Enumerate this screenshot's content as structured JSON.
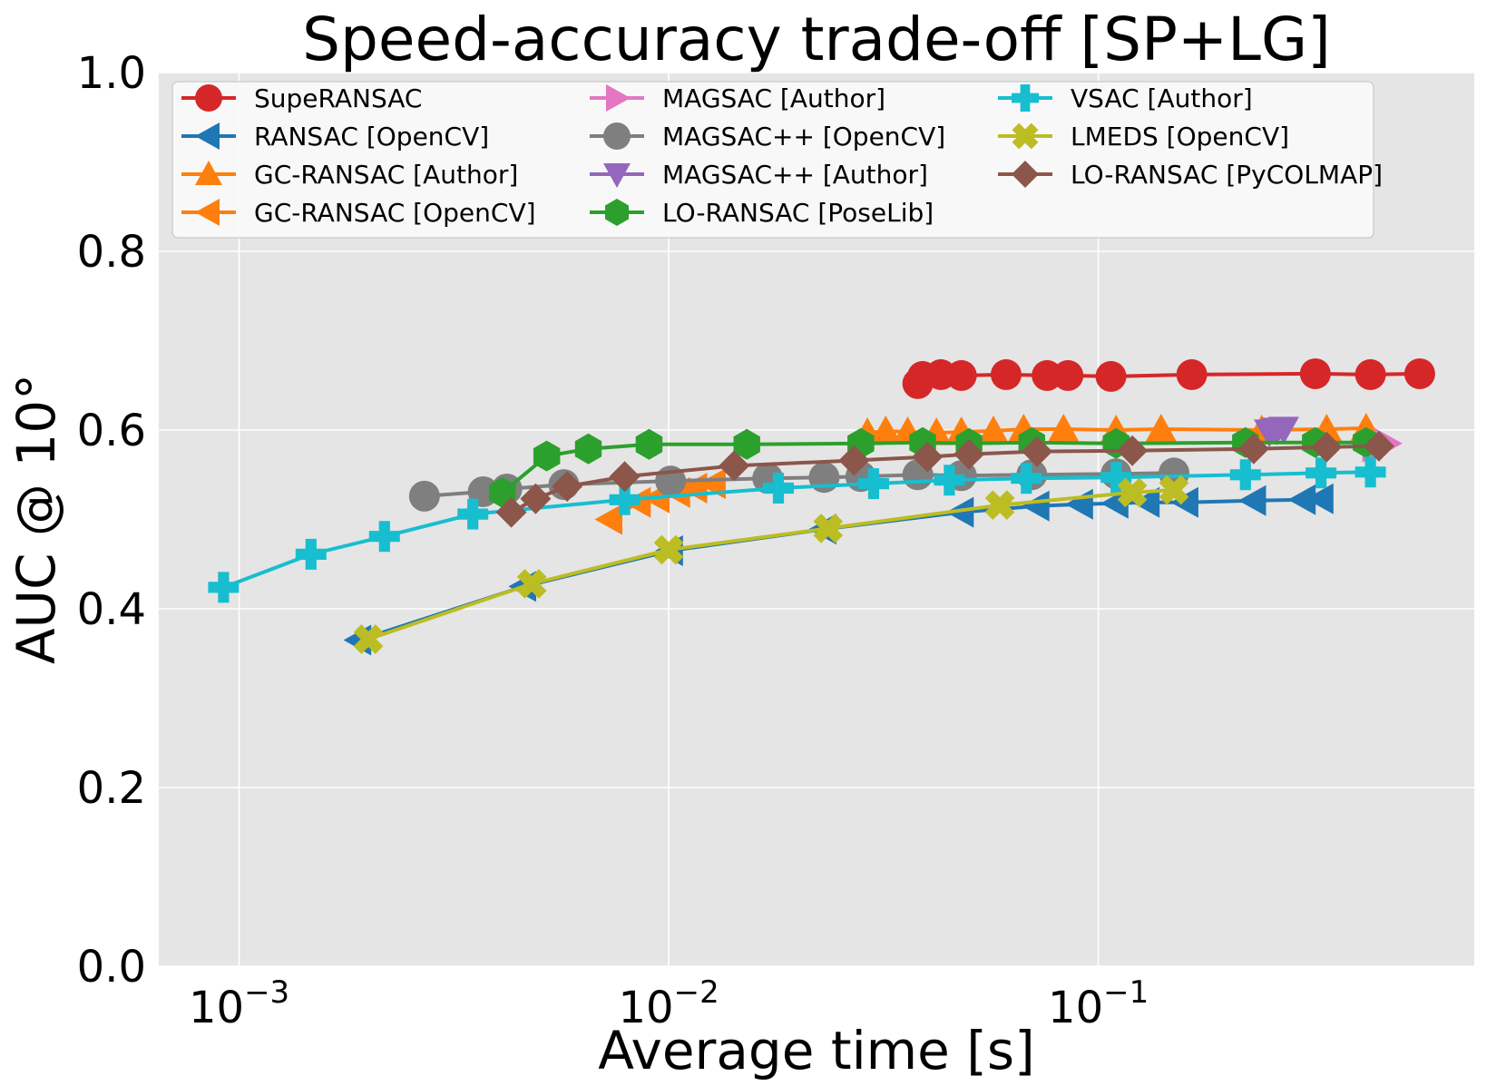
{
  "chart_data": {
    "type": "line",
    "title": "Speed-accuracy trade-off [SP+LG]",
    "xlabel": "Average time [s]",
    "ylabel": "AUC @ 10°",
    "xscale": "log",
    "xlim": [
      0.00065,
      0.75
    ],
    "ylim": [
      0.0,
      1.0
    ],
    "grid": true,
    "legend_position": "top",
    "y_ticks": [
      {
        "value": 0.0,
        "label": "0.0"
      },
      {
        "value": 0.2,
        "label": "0.2"
      },
      {
        "value": 0.4,
        "label": "0.4"
      },
      {
        "value": 0.6,
        "label": "0.6"
      },
      {
        "value": 0.8,
        "label": "0.8"
      },
      {
        "value": 1.0,
        "label": "1.0"
      }
    ],
    "x_ticks": [
      {
        "value": 0.001,
        "base": "10",
        "exp": "−3"
      },
      {
        "value": 0.01,
        "base": "10",
        "exp": "−2"
      },
      {
        "value": 0.1,
        "base": "10",
        "exp": "−1"
      }
    ],
    "series": [
      {
        "name": "SupeRANSAC",
        "color": "#d62728",
        "marker": "circle",
        "x": [
          0.038,
          0.039,
          0.043,
          0.048,
          0.061,
          0.076,
          0.085,
          0.107,
          0.165,
          0.32,
          0.43,
          0.56
        ],
        "y": [
          0.652,
          0.66,
          0.662,
          0.661,
          0.662,
          0.661,
          0.661,
          0.66,
          0.662,
          0.663,
          0.662,
          0.663
        ]
      },
      {
        "name": "RANSAC [OpenCV]",
        "color": "#1f77b4",
        "marker": "triangle-left",
        "x": [
          0.0019,
          0.0046,
          0.0101,
          0.023,
          0.048,
          0.072,
          0.091,
          0.11,
          0.13,
          0.16,
          0.23,
          0.3,
          0.33
        ],
        "y": [
          0.365,
          0.425,
          0.465,
          0.489,
          0.508,
          0.515,
          0.517,
          0.518,
          0.519,
          0.519,
          0.521,
          0.522,
          0.523
        ]
      },
      {
        "name": "GC-RANSAC [Author]",
        "color": "#ff7f0e",
        "marker": "triangle-up",
        "x": [
          0.029,
          0.032,
          0.036,
          0.042,
          0.048,
          0.057,
          0.067,
          0.083,
          0.11,
          0.14,
          0.24,
          0.34,
          0.42
        ],
        "y": [
          0.597,
          0.599,
          0.598,
          0.597,
          0.598,
          0.599,
          0.601,
          0.601,
          0.6,
          0.601,
          0.6,
          0.601,
          0.602
        ]
      },
      {
        "name": "GC-RANSAC [OpenCV]",
        "color": "#ff7f0e",
        "marker": "triangle-left",
        "x": [
          0.0073,
          0.0085,
          0.0094,
          0.0105,
          0.0115,
          0.0127
        ],
        "y": [
          0.5,
          0.519,
          0.524,
          0.53,
          0.535,
          0.54
        ]
      },
      {
        "name": "MAGSAC [Author]",
        "color": "#e377c2",
        "marker": "triangle-right",
        "x": [
          0.44,
          0.45,
          0.47
        ],
        "y": [
          0.581,
          0.583,
          0.585
        ]
      },
      {
        "name": "MAGSAC++ [OpenCV]",
        "color": "#7f7f7f",
        "marker": "circle",
        "x": [
          0.0027,
          0.0037,
          0.0042,
          0.0057,
          0.0101,
          0.017,
          0.023,
          0.028,
          0.038,
          0.048,
          0.07,
          0.11,
          0.15
        ],
        "y": [
          0.526,
          0.531,
          0.534,
          0.539,
          0.543,
          0.546,
          0.547,
          0.548,
          0.55,
          0.549,
          0.55,
          0.551,
          0.552
        ]
      },
      {
        "name": "MAGSAC++ [Author]",
        "color": "#9467bd",
        "marker": "triangle-down",
        "x": [
          0.25,
          0.26,
          0.27
        ],
        "y": [
          0.598,
          0.6,
          0.601
        ]
      },
      {
        "name": "LO-RANSAC [PoseLib]",
        "color": "#2ca02c",
        "marker": "hexagon",
        "x": [
          0.0041,
          0.0052,
          0.0065,
          0.009,
          0.0152,
          0.028,
          0.039,
          0.05,
          0.07,
          0.11,
          0.22,
          0.32,
          0.42
        ],
        "y": [
          0.53,
          0.571,
          0.579,
          0.584,
          0.584,
          0.585,
          0.586,
          0.585,
          0.586,
          0.585,
          0.586,
          0.586,
          0.586
        ]
      },
      {
        "name": "VSAC [Author]",
        "color": "#17becf",
        "marker": "plus",
        "x": [
          0.00092,
          0.00147,
          0.00218,
          0.0035,
          0.0079,
          0.018,
          0.03,
          0.045,
          0.068,
          0.11,
          0.22,
          0.33,
          0.43
        ],
        "y": [
          0.424,
          0.461,
          0.481,
          0.506,
          0.522,
          0.535,
          0.54,
          0.544,
          0.546,
          0.547,
          0.55,
          0.552,
          0.553
        ]
      },
      {
        "name": "LMEDS [OpenCV]",
        "color": "#bcbd22",
        "marker": "x",
        "x": [
          0.002,
          0.0048,
          0.01,
          0.0235,
          0.059,
          0.12,
          0.15
        ],
        "y": [
          0.366,
          0.428,
          0.466,
          0.49,
          0.516,
          0.53,
          0.533
        ]
      },
      {
        "name": "LO-RANSAC [PyCOLMAP]",
        "color": "#8c564b",
        "marker": "diamond",
        "x": [
          0.0043,
          0.0049,
          0.0058,
          0.0079,
          0.0142,
          0.027,
          0.04,
          0.05,
          0.072,
          0.12,
          0.23,
          0.34,
          0.45
        ],
        "y": [
          0.508,
          0.523,
          0.537,
          0.548,
          0.56,
          0.566,
          0.57,
          0.573,
          0.576,
          0.577,
          0.579,
          0.581,
          0.582
        ]
      }
    ]
  }
}
